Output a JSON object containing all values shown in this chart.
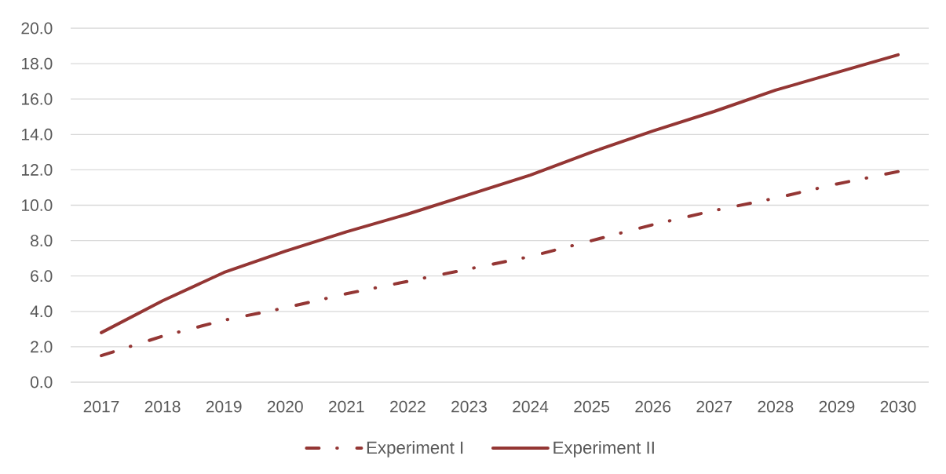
{
  "chart_data": {
    "type": "line",
    "categories": [
      "2017",
      "2018",
      "2019",
      "2020",
      "2021",
      "2022",
      "2023",
      "2024",
      "2025",
      "2026",
      "2027",
      "2028",
      "2029",
      "2030"
    ],
    "series": [
      {
        "name": "Experiment I",
        "color": "#943634",
        "line_style": "dashdot",
        "values": [
          1.5,
          2.6,
          3.5,
          4.2,
          5.0,
          5.7,
          6.4,
          7.1,
          8.0,
          8.9,
          9.7,
          10.4,
          11.2,
          11.9
        ]
      },
      {
        "name": "Experiment II",
        "color": "#943634",
        "line_style": "solid",
        "values": [
          2.8,
          4.6,
          6.2,
          7.4,
          8.5,
          9.5,
          10.6,
          11.7,
          13.0,
          14.2,
          15.3,
          16.5,
          17.5,
          18.5
        ]
      }
    ],
    "ylim": [
      0,
      20
    ],
    "yticks": [
      {
        "value": 0,
        "label": "0.0"
      },
      {
        "value": 2,
        "label": "2.0"
      },
      {
        "value": 4,
        "label": "4.0"
      },
      {
        "value": 6,
        "label": "6.0"
      },
      {
        "value": 8,
        "label": "8.0"
      },
      {
        "value": 10,
        "label": "10.0"
      },
      {
        "value": 12,
        "label": "12.0"
      },
      {
        "value": 14,
        "label": "14.0"
      },
      {
        "value": 16,
        "label": "16.0"
      },
      {
        "value": 18,
        "label": "18.0"
      },
      {
        "value": 20,
        "label": "20.0"
      }
    ],
    "grid": "y",
    "legend": "bottom"
  }
}
